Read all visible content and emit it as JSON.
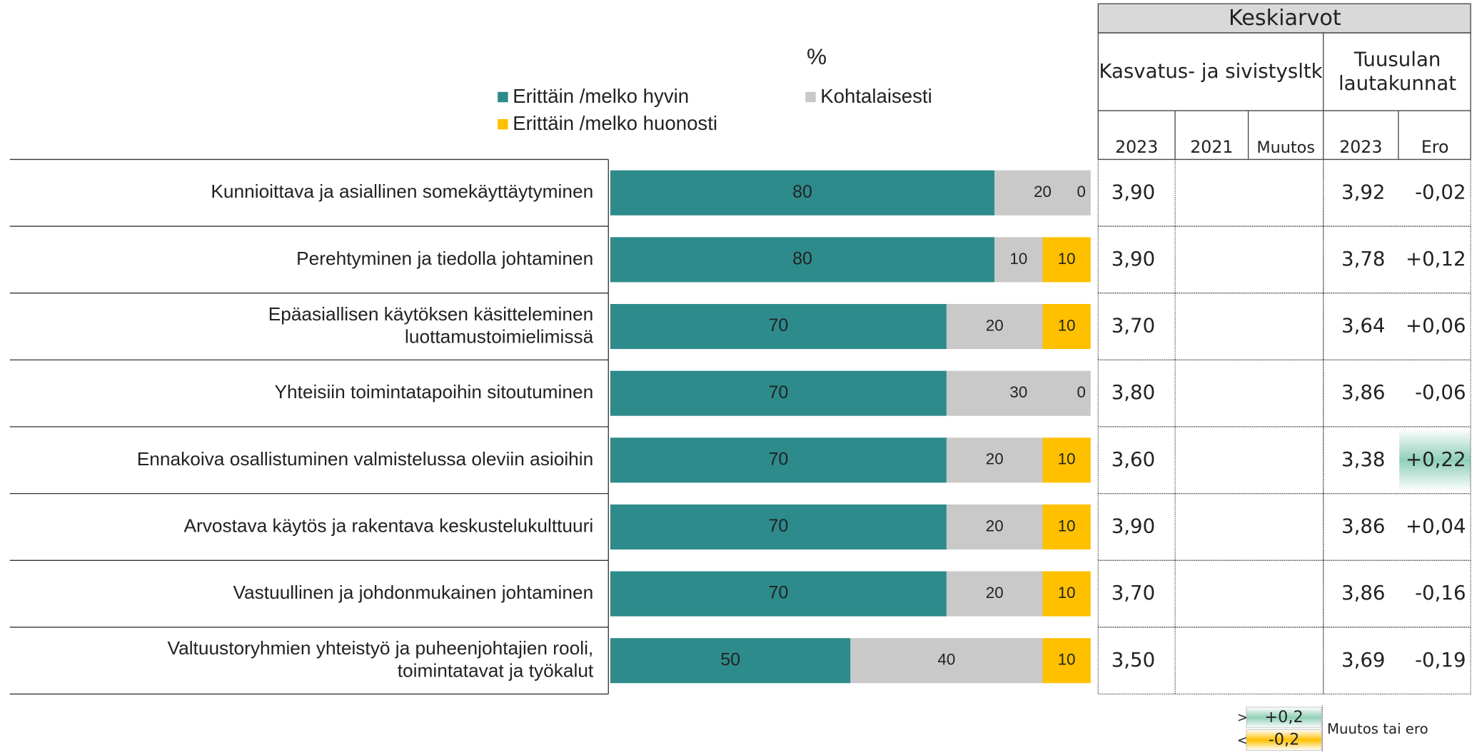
{
  "chart_data": {
    "type": "stacked-hbar",
    "title": "%",
    "categories": [
      "Kunnioittava ja asiallinen somekäyttäytyminen",
      "Perehtyminen ja tiedolla johtaminen",
      "Epäasiallisen käytöksen käsitteleminen\nluottamustoimielimissä",
      "Yhteisiin toimintatapoihin sitoutuminen",
      "Ennakoiva osallistuminen valmistelussa oleviin asioihin",
      "Arvostava käytös ja rakentava keskustelukulttuuri",
      "Vastuullinen ja johdonmukainen johtaminen",
      "Valtuustoryhmien yhteistyö ja puheenjohtajien rooli,\ntoimintatavat ja työkalut"
    ],
    "series": [
      {
        "name": "Erittäin /melko hyvin",
        "color": "#2e8b8b",
        "values": [
          80,
          80,
          70,
          70,
          70,
          70,
          70,
          50
        ]
      },
      {
        "name": "Kohtalaisesti",
        "color": "#c9c9c9",
        "values": [
          20,
          10,
          20,
          30,
          20,
          20,
          20,
          40
        ]
      },
      {
        "name": "Erittäin /melko huonosti",
        "color": "#ffc000",
        "values": [
          0,
          10,
          10,
          0,
          10,
          10,
          10,
          10
        ]
      }
    ],
    "xlim": [
      0,
      100
    ]
  },
  "table": {
    "title": "Keskiarvot",
    "groups": [
      "Kasvatus- ja sivistysltk",
      "Tuusulan\nlautakunnat"
    ],
    "columns": [
      "2023",
      "2021",
      "Muutos",
      "2023",
      "Ero"
    ],
    "rows": [
      {
        "k2023": "3,90",
        "t2023": "3,92",
        "ero": "-0,02"
      },
      {
        "k2023": "3,90",
        "t2023": "3,78",
        "ero": "+0,12"
      },
      {
        "k2023": "3,70",
        "t2023": "3,64",
        "ero": "+0,06"
      },
      {
        "k2023": "3,80",
        "t2023": "3,86",
        "ero": "-0,06"
      },
      {
        "k2023": "3,60",
        "t2023": "3,38",
        "ero": "+0,22",
        "highlight": "#8fcfb7"
      },
      {
        "k2023": "3,90",
        "t2023": "3,86",
        "ero": "+0,04"
      },
      {
        "k2023": "3,70",
        "t2023": "3,86",
        "ero": "-0,16"
      },
      {
        "k2023": "3,50",
        "t2023": "3,69",
        "ero": "-0,19"
      }
    ],
    "legend": [
      {
        "sign": ">",
        "label": "+0,2",
        "color": "#8fcfb7"
      },
      {
        "sign": "<",
        "label": "-0,2",
        "color": "#ffc000"
      }
    ],
    "legend_note": "Muutos tai ero"
  }
}
